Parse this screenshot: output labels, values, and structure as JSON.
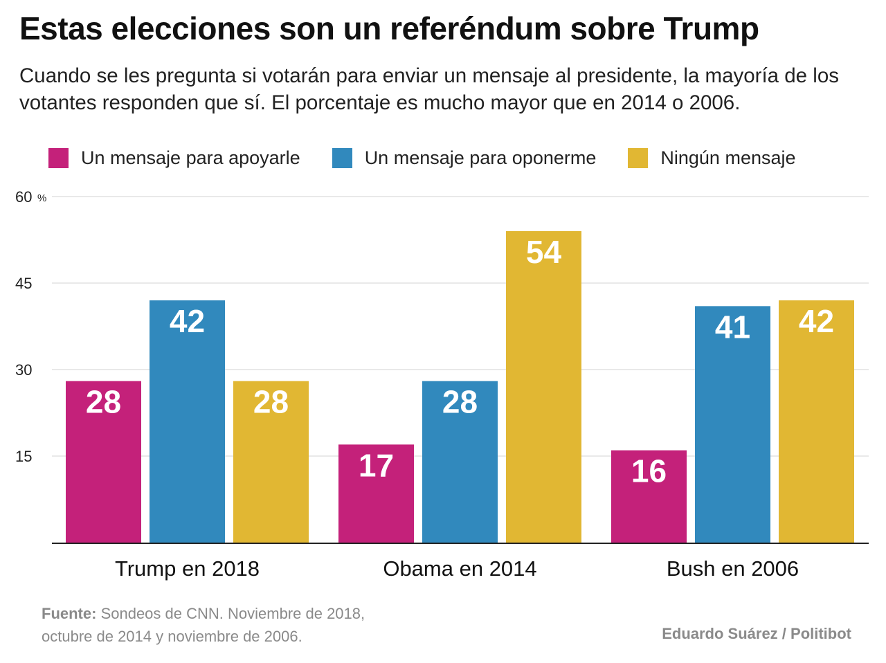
{
  "title": "Estas elecciones son un referéndum sobre Trump",
  "subtitle": "Cuando se les pregunta si votarán para enviar un mensaje al presidente, la mayoría de los votantes responden que sí. El porcentaje es mucho mayor que en 2014 o 2006.",
  "legend": [
    {
      "label": "Un mensaje para apoyarle",
      "color": "#c4217a"
    },
    {
      "label": "Un mensaje para oponerme",
      "color": "#3189bd"
    },
    {
      "label": "Ningún mensaje",
      "color": "#e1b733"
    }
  ],
  "chart_data": {
    "type": "bar",
    "categories": [
      "Trump en 2018",
      "Obama en 2014",
      "Bush en 2006"
    ],
    "series": [
      {
        "name": "Un mensaje para apoyarle",
        "values": [
          28,
          17,
          16
        ],
        "color": "#c4217a"
      },
      {
        "name": "Un mensaje para oponerme",
        "values": [
          42,
          28,
          41
        ],
        "color": "#3189bd"
      },
      {
        "name": "Ningún mensaje",
        "values": [
          28,
          54,
          42
        ],
        "color": "#e1b733"
      }
    ],
    "ylim": [
      0,
      60
    ],
    "yticks": [
      {
        "value": 15,
        "label": "15"
      },
      {
        "value": 30,
        "label": "30"
      },
      {
        "value": 45,
        "label": "45"
      },
      {
        "value": 60,
        "label": "60"
      }
    ],
    "yunit": "%",
    "grid": true,
    "title": "Estas elecciones son un referéndum sobre Trump",
    "xlabel": "",
    "ylabel": ""
  },
  "footer": {
    "source_label": "Fuente:",
    "source_line1": " Sondeos de CNN. Noviembre de 2018,",
    "source_line2": "octubre de 2014 y noviembre de 2006.",
    "credit": "Eduardo Suárez / Politibot"
  }
}
